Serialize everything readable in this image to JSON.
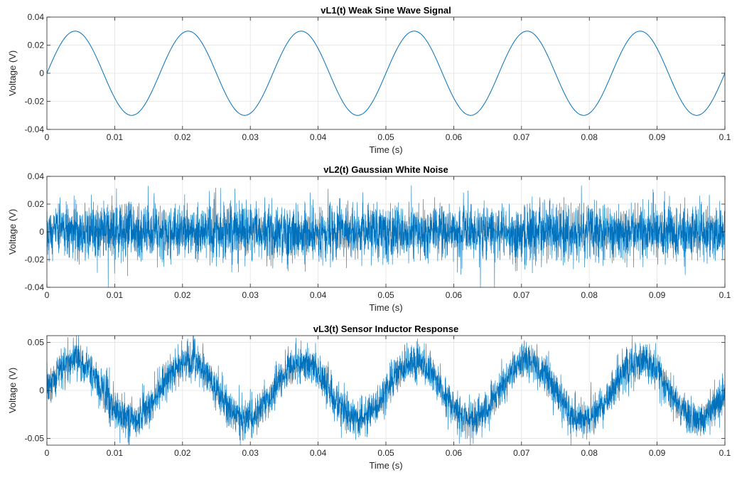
{
  "chart_data": [
    {
      "type": "line",
      "title": "vL1(t) Weak Sine Wave Signal",
      "xlabel": "Time (s)",
      "ylabel": "Voltage (V)",
      "xlim": [
        0,
        0.1
      ],
      "ylim": [
        -0.04,
        0.04
      ],
      "xticks": [
        0,
        0.01,
        0.02,
        0.03,
        0.04,
        0.05,
        0.06,
        0.07,
        0.08,
        0.09,
        0.1
      ],
      "xtick_labels": [
        "0",
        "0.01",
        "0.02",
        "0.03",
        "0.04",
        "0.05",
        "0.06",
        "0.07",
        "0.08",
        "0.09",
        "0.1"
      ],
      "yticks": [
        -0.04,
        -0.02,
        0,
        0.02,
        0.04
      ],
      "ytick_labels": [
        "-0.04",
        "-0.02",
        "0",
        "0.02",
        "0.04"
      ],
      "grid": true,
      "series": [
        {
          "signal": "sine",
          "amplitude": 0.03,
          "frequency_hz": 60,
          "color": "#0072bd"
        }
      ]
    },
    {
      "type": "line",
      "title": "vL2(t) Gaussian White Noise",
      "xlabel": "Time (s)",
      "ylabel": "Voltage (V)",
      "xlim": [
        0,
        0.1
      ],
      "ylim": [
        -0.04,
        0.04
      ],
      "xticks": [
        0,
        0.01,
        0.02,
        0.03,
        0.04,
        0.05,
        0.06,
        0.07,
        0.08,
        0.09,
        0.1
      ],
      "xtick_labels": [
        "0",
        "0.01",
        "0.02",
        "0.03",
        "0.04",
        "0.05",
        "0.06",
        "0.07",
        "0.08",
        "0.09",
        "0.1"
      ],
      "yticks": [
        -0.04,
        -0.02,
        0,
        0.02,
        0.04
      ],
      "ytick_labels": [
        "-0.04",
        "-0.02",
        "0",
        "0.02",
        "0.04"
      ],
      "grid": true,
      "series": [
        {
          "signal": "gaussian_noise",
          "std": 0.01,
          "color": "#0072bd"
        }
      ]
    },
    {
      "type": "line",
      "title": "vL3(t) Sensor Inductor Response",
      "xlabel": "Time (s)",
      "ylabel": "Voltage (V)",
      "xlim": [
        0,
        0.1
      ],
      "ylim": [
        -0.057,
        0.057
      ],
      "xticks": [
        0,
        0.01,
        0.02,
        0.03,
        0.04,
        0.05,
        0.06,
        0.07,
        0.08,
        0.09,
        0.1
      ],
      "xtick_labels": [
        "0",
        "0.01",
        "0.02",
        "0.03",
        "0.04",
        "0.05",
        "0.06",
        "0.07",
        "0.08",
        "0.09",
        "0.1"
      ],
      "yticks": [
        -0.05,
        0,
        0.05
      ],
      "ytick_labels": [
        "-0.05",
        "0",
        "0.05"
      ],
      "grid": true,
      "series": [
        {
          "signal": "sine_plus_noise",
          "amplitude": 0.03,
          "frequency_hz": 60,
          "std": 0.01,
          "color": "#0072bd"
        }
      ]
    }
  ]
}
